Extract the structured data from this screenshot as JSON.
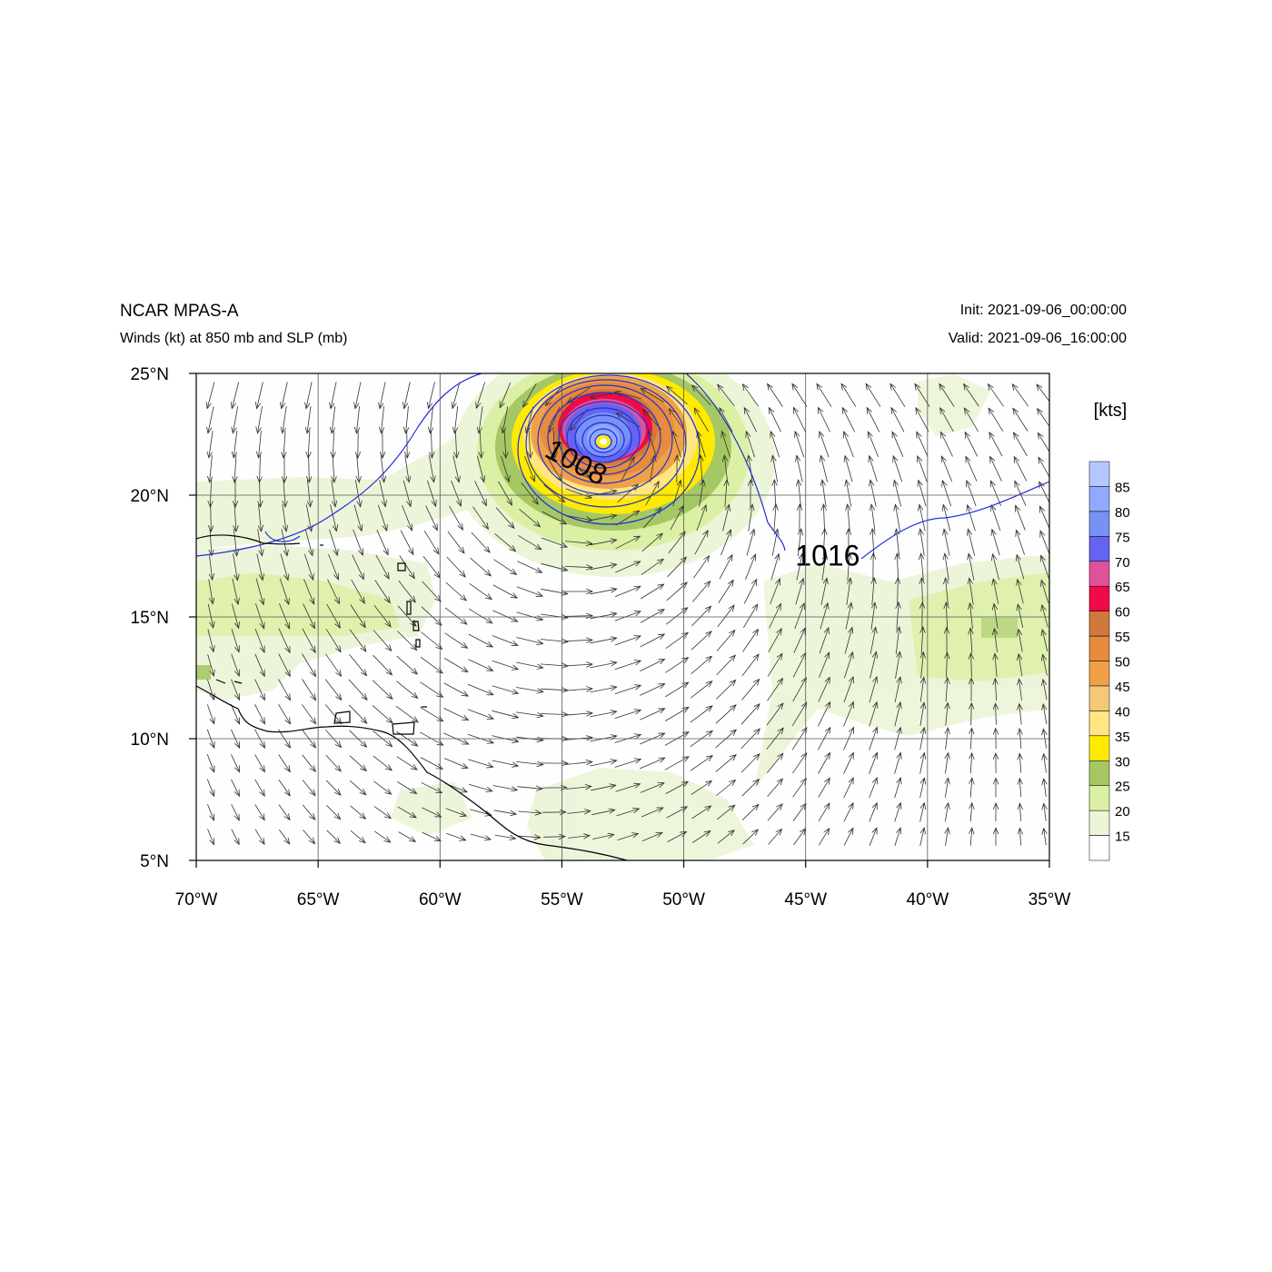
{
  "title": "NCAR MPAS-A",
  "subtitle": "Winds (kt) at 850 mb and SLP (mb)",
  "init_text": "Init: 2021-09-06_00:00:00",
  "valid_text": "Valid: 2021-09-06_16:00:00",
  "map": {
    "lon_range": [
      -70,
      -35
    ],
    "lat_range": [
      5,
      25
    ],
    "lon_ticks": [
      {
        "value": -70,
        "label": "70°W"
      },
      {
        "value": -65,
        "label": "65°W"
      },
      {
        "value": -60,
        "label": "60°W"
      },
      {
        "value": -55,
        "label": "55°W"
      },
      {
        "value": -50,
        "label": "50°W"
      },
      {
        "value": -45,
        "label": "45°W"
      },
      {
        "value": -40,
        "label": "40°W"
      },
      {
        "value": -35,
        "label": "35°W"
      }
    ],
    "lat_ticks": [
      {
        "value": 25,
        "label": "25°N"
      },
      {
        "value": 20,
        "label": "20°N"
      },
      {
        "value": 15,
        "label": "15°N"
      },
      {
        "value": 10,
        "label": "10°N"
      },
      {
        "value": 5,
        "label": "5°N"
      }
    ],
    "grid": true,
    "storm_center": {
      "lon": -53.3,
      "lat": 22.1
    },
    "slp_labels": [
      {
        "text": "1008",
        "lon": -54.6,
        "lat": 21.0,
        "rotate": 28
      },
      {
        "text": "1016",
        "lon": -44.1,
        "lat": 17.1,
        "rotate": 0
      }
    ]
  },
  "colorbar": {
    "unit_label": "[kts]",
    "labels": [
      "15",
      "20",
      "25",
      "30",
      "35",
      "40",
      "45",
      "50",
      "55",
      "60",
      "65",
      "70",
      "75",
      "80",
      "85"
    ],
    "colors": [
      "#ffffff",
      "#ebf5d7",
      "#dcf0a5",
      "#a5c864",
      "#ffea00",
      "#ffe682",
      "#f5c878",
      "#f0a046",
      "#e68c3c",
      "#d2783c",
      "#f00a46",
      "#e1509b",
      "#6464f0",
      "#7891f5",
      "#91aaff",
      "#b4c8ff"
    ]
  }
}
